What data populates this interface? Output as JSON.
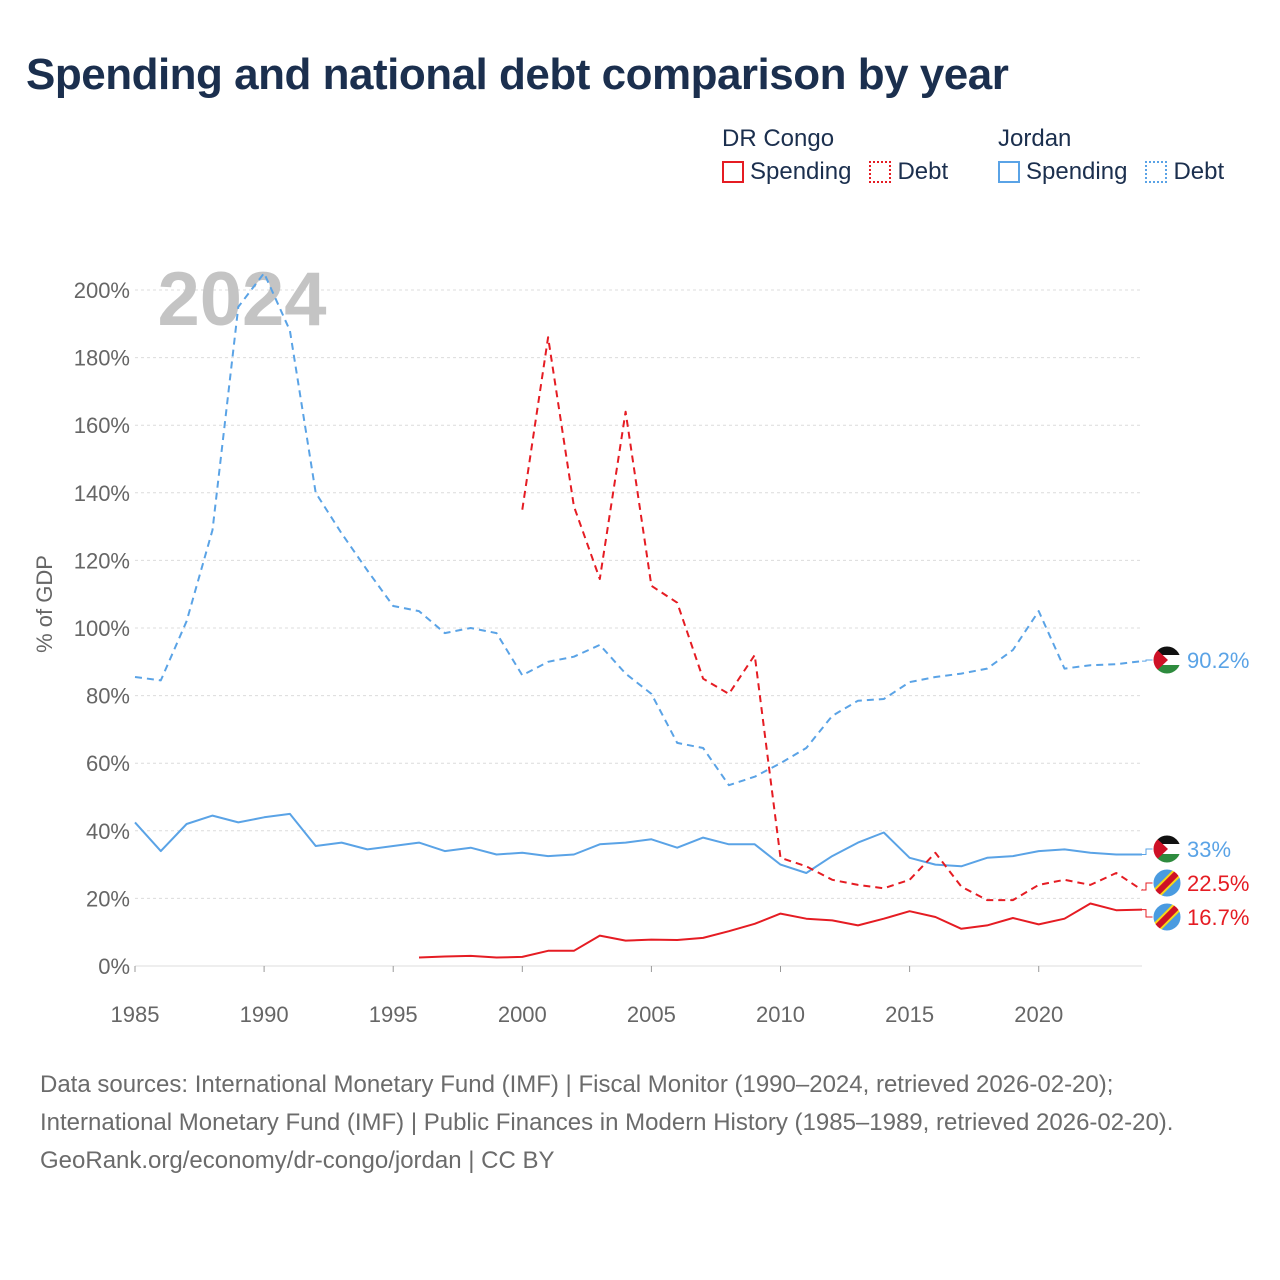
{
  "title": "Spending and national debt comparison by year",
  "year_watermark": "2024",
  "legend": {
    "groups": [
      {
        "name": "DR Congo",
        "items": [
          "Spending",
          "Debt"
        ],
        "color": "#e51c23"
      },
      {
        "name": "Jordan",
        "items": [
          "Spending",
          "Debt"
        ],
        "color": "#5aa3e6"
      }
    ]
  },
  "footer": {
    "sources": "Data sources: International Monetary Fund (IMF) | Fiscal Monitor (1990–2024, retrieved 2026-02-20); International Monetary Fund (IMF) | Public Finances in Modern History (1985–1989, retrieved 2026-02-20).",
    "credit": "GeoRank.org/economy/dr-congo/jordan | CC BY"
  },
  "chart_data": {
    "type": "line",
    "ylabel": "% of GDP",
    "xlabel": "",
    "xlim": [
      1985,
      2024
    ],
    "ylim": [
      0,
      200
    ],
    "x_ticks": [
      1985,
      1990,
      1995,
      2000,
      2005,
      2010,
      2015,
      2020
    ],
    "y_ticks": [
      0,
      20,
      40,
      60,
      80,
      100,
      120,
      140,
      160,
      180,
      200
    ],
    "y_tick_labels": [
      "0%",
      "20%",
      "40%",
      "60%",
      "80%",
      "100%",
      "120%",
      "140%",
      "160%",
      "180%",
      "200%"
    ],
    "colors": {
      "dr_congo": "#e51c23",
      "jordan": "#5aa3e6"
    },
    "series": [
      {
        "key": "jo_debt",
        "name": "Jordan Debt",
        "country": "Jordan",
        "style": "dashed",
        "color": "#5aa3e6",
        "end_label": "90.2%",
        "points": [
          [
            1985,
            85.5
          ],
          [
            1986,
            84.5
          ],
          [
            1987,
            102
          ],
          [
            1988,
            129
          ],
          [
            1989,
            195
          ],
          [
            1990,
            205
          ],
          [
            1991,
            188
          ],
          [
            1992,
            140
          ],
          [
            1993,
            128
          ],
          [
            1994,
            117
          ],
          [
            1995,
            106.5
          ],
          [
            1996,
            105
          ],
          [
            1997,
            98.5
          ],
          [
            1998,
            100
          ],
          [
            1999,
            98.5
          ],
          [
            2000,
            86
          ],
          [
            2001,
            90
          ],
          [
            2002,
            91.5
          ],
          [
            2003,
            95
          ],
          [
            2004,
            86.5
          ],
          [
            2005,
            80.5
          ],
          [
            2006,
            66
          ],
          [
            2007,
            64.5
          ],
          [
            2008,
            53.5
          ],
          [
            2009,
            56
          ],
          [
            2010,
            60
          ],
          [
            2011,
            64.5
          ],
          [
            2012,
            74
          ],
          [
            2013,
            78.5
          ],
          [
            2014,
            79
          ],
          [
            2015,
            84
          ],
          [
            2016,
            85.5
          ],
          [
            2017,
            86.5
          ],
          [
            2018,
            88
          ],
          [
            2019,
            93.5
          ],
          [
            2020,
            105
          ],
          [
            2021,
            88
          ],
          [
            2022,
            89
          ],
          [
            2023,
            89.3
          ],
          [
            2024,
            90.2
          ]
        ]
      },
      {
        "key": "jo_spending",
        "name": "Jordan Spending",
        "country": "Jordan",
        "style": "solid",
        "color": "#5aa3e6",
        "end_label": "33%",
        "points": [
          [
            1985,
            42.5
          ],
          [
            1986,
            34
          ],
          [
            1987,
            42
          ],
          [
            1988,
            44.5
          ],
          [
            1989,
            42.5
          ],
          [
            1990,
            44
          ],
          [
            1991,
            45
          ],
          [
            1992,
            35.5
          ],
          [
            1993,
            36.5
          ],
          [
            1994,
            34.5
          ],
          [
            1995,
            35.5
          ],
          [
            1996,
            36.5
          ],
          [
            1997,
            34
          ],
          [
            1998,
            35
          ],
          [
            1999,
            33
          ],
          [
            2000,
            33.5
          ],
          [
            2001,
            32.5
          ],
          [
            2002,
            33
          ],
          [
            2003,
            36
          ],
          [
            2004,
            36.5
          ],
          [
            2005,
            37.5
          ],
          [
            2006,
            35
          ],
          [
            2007,
            38
          ],
          [
            2008,
            36
          ],
          [
            2009,
            36
          ],
          [
            2010,
            30
          ],
          [
            2011,
            27.5
          ],
          [
            2012,
            32.5
          ],
          [
            2013,
            36.5
          ],
          [
            2014,
            39.5
          ],
          [
            2015,
            32
          ],
          [
            2016,
            30
          ],
          [
            2017,
            29.5
          ],
          [
            2018,
            32
          ],
          [
            2019,
            32.5
          ],
          [
            2020,
            34
          ],
          [
            2021,
            34.5
          ],
          [
            2022,
            33.5
          ],
          [
            2023,
            33
          ],
          [
            2024,
            33
          ]
        ]
      },
      {
        "key": "dr_debt",
        "name": "DR Congo Debt",
        "country": "DR Congo",
        "style": "dashed",
        "color": "#e51c23",
        "end_label": "22.5%",
        "points": [
          [
            2000,
            135
          ],
          [
            2001,
            186
          ],
          [
            2002,
            136
          ],
          [
            2003,
            114.5
          ],
          [
            2004,
            164
          ],
          [
            2005,
            112.5
          ],
          [
            2006,
            107.5
          ],
          [
            2007,
            85
          ],
          [
            2008,
            80.5
          ],
          [
            2009,
            92
          ],
          [
            2010,
            32
          ],
          [
            2011,
            29.5
          ],
          [
            2012,
            25.5
          ],
          [
            2013,
            24
          ],
          [
            2014,
            23
          ],
          [
            2015,
            25.5
          ],
          [
            2016,
            33.5
          ],
          [
            2017,
            23.5
          ],
          [
            2018,
            19.5
          ],
          [
            2019,
            19.5
          ],
          [
            2020,
            24
          ],
          [
            2021,
            25.5
          ],
          [
            2022,
            24
          ],
          [
            2023,
            27.5
          ],
          [
            2024,
            22.5
          ]
        ]
      },
      {
        "key": "dr_spending",
        "name": "DR Congo Spending",
        "country": "DR Congo",
        "style": "solid",
        "color": "#e51c23",
        "end_label": "16.7%",
        "points": [
          [
            1996,
            2.5
          ],
          [
            1997,
            2.8
          ],
          [
            1998,
            3
          ],
          [
            1999,
            2.5
          ],
          [
            2000,
            2.7
          ],
          [
            2001,
            4.5
          ],
          [
            2002,
            4.5
          ],
          [
            2003,
            9
          ],
          [
            2004,
            7.5
          ],
          [
            2005,
            7.8
          ],
          [
            2006,
            7.7
          ],
          [
            2007,
            8.3
          ],
          [
            2008,
            10.3
          ],
          [
            2009,
            12.5
          ],
          [
            2010,
            15.5
          ],
          [
            2011,
            14
          ],
          [
            2012,
            13.5
          ],
          [
            2013,
            12
          ],
          [
            2014,
            14
          ],
          [
            2015,
            16.2
          ],
          [
            2016,
            14.5
          ],
          [
            2017,
            11
          ],
          [
            2018,
            12
          ],
          [
            2019,
            14.2
          ],
          [
            2020,
            12.3
          ],
          [
            2021,
            14
          ],
          [
            2022,
            18.5
          ],
          [
            2023,
            16.5
          ],
          [
            2024,
            16.7
          ]
        ]
      }
    ]
  }
}
